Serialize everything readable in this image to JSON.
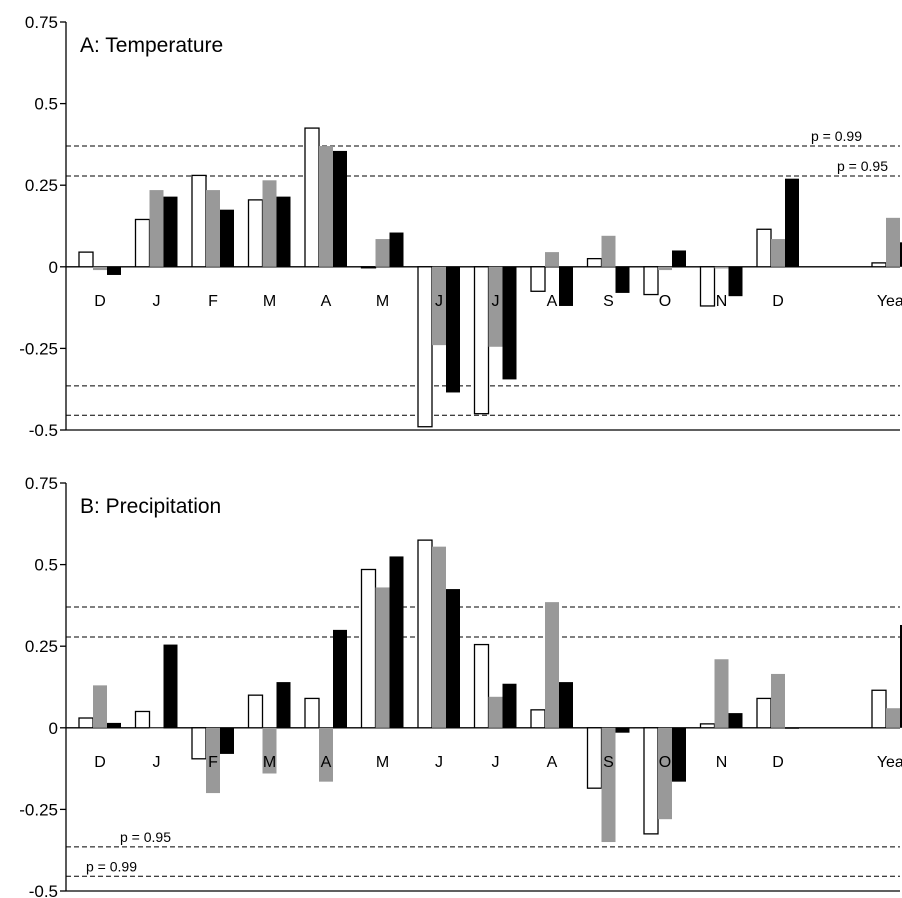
{
  "chart_data": [
    {
      "type": "bar",
      "title": "A: Temperature",
      "categories": [
        "D",
        "J",
        "F",
        "M",
        "A",
        "M",
        "J",
        "J",
        "A",
        "S",
        "O",
        "N",
        "D",
        "",
        "Year"
      ],
      "series": [
        {
          "color": "#ffffff",
          "values": [
            0.045,
            0.145,
            0.28,
            0.205,
            0.425,
            0.0,
            -0.49,
            -0.45,
            -0.075,
            0.025,
            -0.085,
            -0.12,
            0.115,
            null,
            0.012
          ]
        },
        {
          "color": "#999999",
          "values": [
            -0.01,
            0.235,
            0.235,
            0.265,
            0.37,
            0.085,
            -0.24,
            -0.245,
            0.045,
            0.095,
            -0.01,
            -0.005,
            0.085,
            null,
            0.15
          ]
        },
        {
          "color": "#000000",
          "values": [
            -0.025,
            0.215,
            0.175,
            0.215,
            0.355,
            0.105,
            -0.385,
            -0.345,
            -0.12,
            -0.08,
            0.05,
            -0.09,
            0.27,
            null,
            0.075
          ]
        }
      ],
      "ylim": [
        -0.5,
        0.75
      ],
      "yticks": [
        "0.75",
        "0.5",
        "0.25",
        "0",
        "-0.25",
        "-0.5"
      ],
      "ytick_values": [
        0.75,
        0.5,
        0.25,
        0,
        -0.25,
        -0.5
      ],
      "thresholds": [
        {
          "value": 0.37,
          "label": "p = 0.99",
          "label_side": "right"
        },
        {
          "value": 0.278,
          "label": "p = 0.95",
          "label_side": "right"
        },
        {
          "value": -0.365,
          "label": "",
          "label_side": "right"
        },
        {
          "value": -0.455,
          "label": "",
          "label_side": "right"
        }
      ]
    },
    {
      "type": "bar",
      "title": "B: Precipitation",
      "categories": [
        "D",
        "J",
        "F",
        "M",
        "A",
        "M",
        "J",
        "J",
        "A",
        "S",
        "O",
        "N",
        "D",
        "",
        "Year"
      ],
      "series": [
        {
          "color": "#ffffff",
          "values": [
            0.03,
            0.05,
            -0.095,
            0.1,
            0.09,
            0.485,
            0.575,
            0.255,
            0.055,
            -0.185,
            -0.325,
            0.012,
            0.09,
            null,
            0.115
          ]
        },
        {
          "color": "#999999",
          "values": [
            0.13,
            0.0,
            -0.2,
            -0.14,
            -0.165,
            0.43,
            0.555,
            0.095,
            0.385,
            -0.35,
            -0.28,
            0.21,
            0.165,
            null,
            0.06
          ]
        },
        {
          "color": "#000000",
          "values": [
            0.015,
            0.255,
            -0.08,
            0.14,
            0.3,
            0.525,
            0.425,
            0.135,
            0.14,
            -0.015,
            -0.165,
            0.045,
            0.0,
            null,
            0.315
          ]
        }
      ],
      "ylim": [
        -0.5,
        0.75
      ],
      "yticks": [
        "0.75",
        "0.5",
        "0.25",
        "0",
        "-0.25",
        "-0.5"
      ],
      "ytick_values": [
        0.75,
        0.5,
        0.25,
        0,
        -0.25,
        -0.5
      ],
      "thresholds": [
        {
          "value": 0.37,
          "label": "",
          "label_side": "left"
        },
        {
          "value": 0.278,
          "label": "",
          "label_side": "left"
        },
        {
          "value": -0.365,
          "label": "p = 0.95",
          "label_side": "left"
        },
        {
          "value": -0.455,
          "label": "p = 0.99",
          "label_side": "left"
        }
      ]
    }
  ]
}
